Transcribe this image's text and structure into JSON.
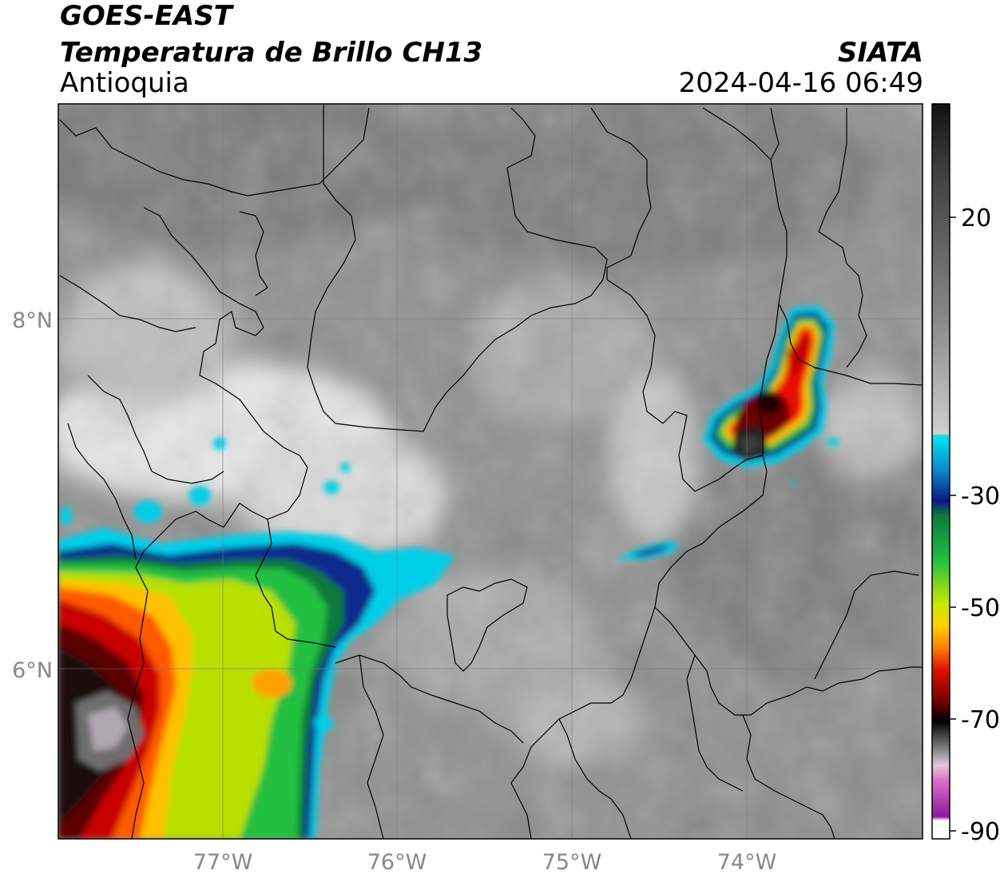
{
  "header": {
    "line1": "GOES-EAST",
    "line2": "Temperatura de Brillo CH13",
    "line3": "Antioquia",
    "org": "SIATA",
    "datetime": "2024-04-16 06:49"
  },
  "axes": {
    "lon_ticks": [
      "77°W",
      "76°W",
      "75°W",
      "74°W"
    ],
    "lat_ticks": [
      "8°N",
      "6°N"
    ]
  },
  "colorbar": {
    "ticks": [
      "20",
      "-30",
      "-50",
      "-70",
      "-90"
    ],
    "colors": {
      "warm_dark": "#1a1a1a",
      "gray": "#8c8c8c",
      "light": "#f2f2f2",
      "cyan": "#00d7e8",
      "blue": "#0a2a8c",
      "green": "#14b43c",
      "yellow": "#e8e800",
      "orange": "#ff8c00",
      "red": "#d80000",
      "dark_red": "#5a0000",
      "black": "#000000",
      "pink": "#e070c0",
      "purple": "#8a1a9a"
    }
  }
}
